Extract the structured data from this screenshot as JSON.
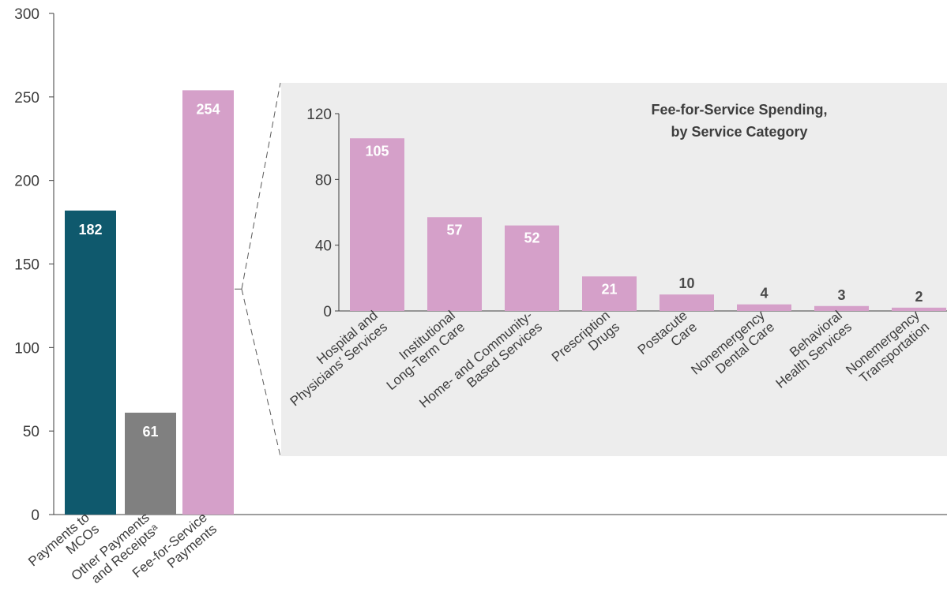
{
  "colors": {
    "mco": "#0f596d",
    "other": "#808080",
    "ffs": "#d5a0c9",
    "inset_bg": "#ededed",
    "axis": "#3d3d3d",
    "connector": "#5a5a5a"
  },
  "chart_data": [
    {
      "type": "bar",
      "title": "",
      "xlabel": "",
      "ylabel": "",
      "ylim": [
        0,
        300
      ],
      "yticks": [
        0,
        50,
        100,
        150,
        200,
        250,
        300
      ],
      "categories": [
        [
          "Payments to",
          "MCOs"
        ],
        [
          "Other Payments",
          "and Receiptsᵃ"
        ],
        [
          "Fee-for-Service",
          "Payments"
        ]
      ],
      "values": [
        182,
        61,
        254
      ],
      "value_labels": [
        "182",
        "61",
        "254"
      ],
      "bar_colors": [
        "mco",
        "other",
        "ffs"
      ]
    },
    {
      "type": "bar",
      "title": [
        "Fee-for-Service Spending,",
        "by Service Category"
      ],
      "xlabel": "",
      "ylabel": "",
      "ylim": [
        0,
        120
      ],
      "yticks": [
        0,
        40,
        80,
        120
      ],
      "categories": [
        [
          "Hospital and",
          "Physicians’ Services"
        ],
        [
          "Institutional",
          "Long-Term Care"
        ],
        [
          "Home- and Community-",
          "Based Services"
        ],
        [
          "Prescription",
          "Drugs"
        ],
        [
          "Postacute",
          "Care"
        ],
        [
          "Nonemergency",
          "Dental Care"
        ],
        [
          "Behavioral",
          "Health Services"
        ],
        [
          "Nonemergency",
          "Transportation"
        ]
      ],
      "values": [
        105,
        57,
        52,
        21,
        10,
        4,
        3,
        2
      ],
      "value_labels": [
        "105",
        "57",
        "52",
        "21",
        "10",
        "4",
        "3",
        "2"
      ],
      "bar_colors": [
        "ffs",
        "ffs",
        "ffs",
        "ffs",
        "ffs",
        "ffs",
        "ffs",
        "ffs"
      ]
    }
  ]
}
